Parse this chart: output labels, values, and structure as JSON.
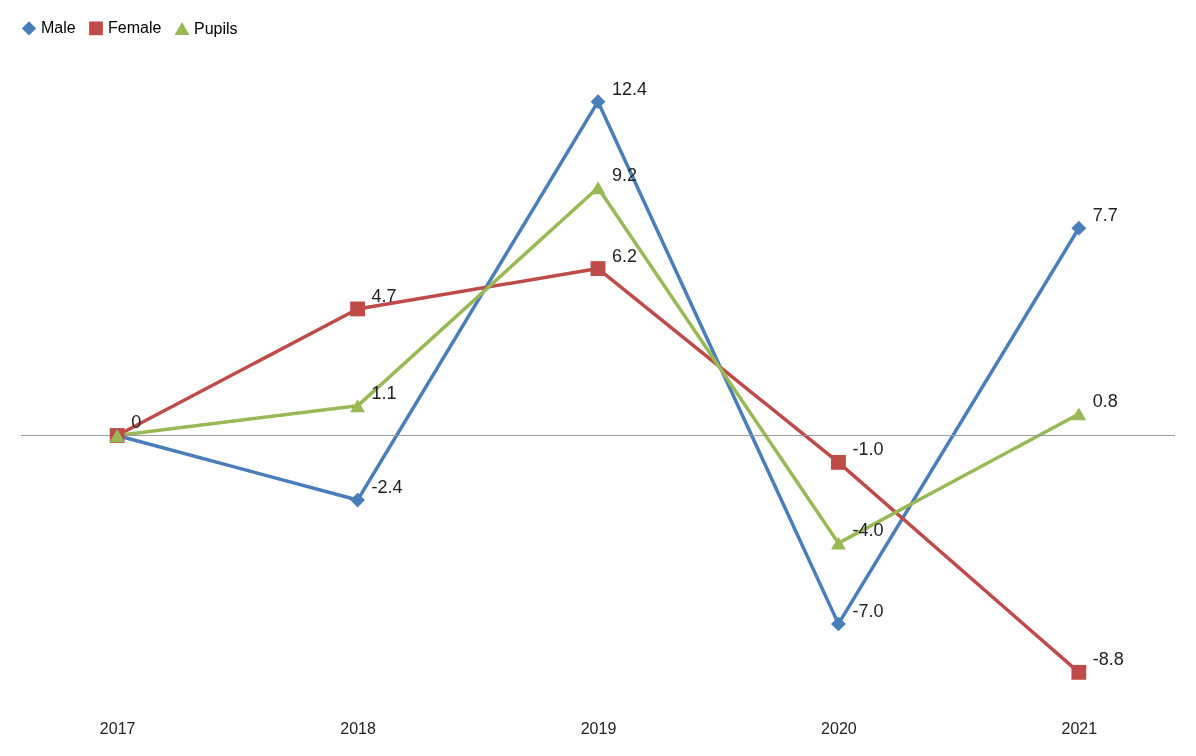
{
  "chart_data": {
    "type": "line",
    "categories": [
      "2017",
      "2018",
      "2019",
      "2020",
      "2021"
    ],
    "legend": "top",
    "grid": false,
    "series": [
      {
        "name": "Male",
        "color": "#4a7ebb",
        "marker": "diamond",
        "values": [
          0,
          -2.4,
          12.4,
          -7.0,
          7.7
        ],
        "value_labels": [
          "0",
          "-2.4",
          "12.4",
          "-7.0",
          "7.7"
        ]
      },
      {
        "name": "Female",
        "color": "#be4b48",
        "marker": "square",
        "values": [
          0,
          4.7,
          6.2,
          -1.0,
          -8.8
        ],
        "value_labels": [
          null,
          "4.7",
          "6.2",
          "-1.0",
          "-8.8"
        ]
      },
      {
        "name": "Pupils",
        "color": "#98b954",
        "marker": "triangle",
        "values": [
          0,
          1.1,
          9.2,
          -4.0,
          0.8
        ],
        "value_labels": [
          null,
          "1.1",
          "9.2",
          "-4.0",
          "0.8"
        ]
      }
    ]
  }
}
